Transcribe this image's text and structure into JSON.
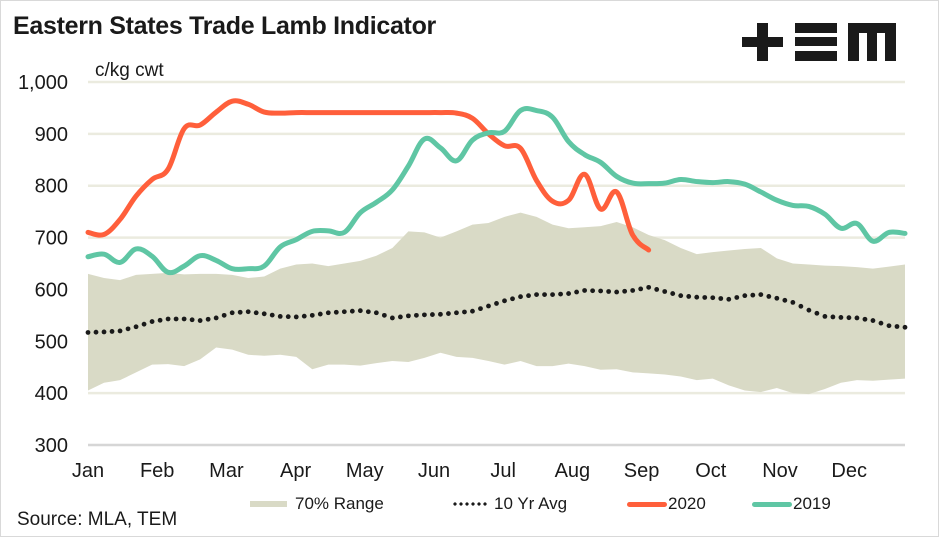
{
  "chart_data": {
    "type": "line",
    "title": "Eastern States Trade Lamb Indicator",
    "ylabel": "c/kg cwt",
    "xlabel": "",
    "ylim": [
      300,
      1000
    ],
    "yticks": [
      300,
      400,
      500,
      600,
      700,
      800,
      900,
      1000
    ],
    "ytick_labels": [
      "300",
      "400",
      "500",
      "600",
      "700",
      "800",
      "900",
      "1,000"
    ],
    "x_unit": "week of year",
    "xlim": [
      0,
      51
    ],
    "month_labels": [
      "Jan",
      "Feb",
      "Mar",
      "Apr",
      "May",
      "Jun",
      "Jul",
      "Aug",
      "Sep",
      "Oct",
      "Nov",
      "Dec"
    ],
    "grid": "horizontal",
    "legend_position": "bottom",
    "series": [
      {
        "name": "70% Range",
        "kind": "band",
        "color": "#d9dac6",
        "lower": [
          405,
          420,
          425,
          440,
          455,
          456,
          452,
          465,
          488,
          484,
          474,
          472,
          474,
          470,
          446,
          455,
          455,
          453,
          458,
          462,
          460,
          468,
          478,
          470,
          468,
          462,
          455,
          462,
          452,
          452,
          457,
          452,
          445,
          446,
          440,
          438,
          436,
          432,
          425,
          428,
          415,
          405,
          402,
          410,
          400,
          398,
          408,
          420,
          425,
          424,
          426,
          428
        ],
        "upper": [
          630,
          622,
          618,
          628,
          630,
          632,
          629,
          630,
          630,
          628,
          622,
          625,
          640,
          648,
          650,
          645,
          650,
          655,
          665,
          680,
          712,
          710,
          700,
          712,
          725,
          728,
          740,
          748,
          740,
          725,
          718,
          720,
          722,
          730,
          720,
          705,
          695,
          680,
          668,
          672,
          675,
          678,
          680,
          660,
          650,
          648,
          646,
          645,
          643,
          640,
          644,
          648
        ]
      },
      {
        "name": "10 Yr Avg",
        "kind": "dotted",
        "color": "#1a1a1a",
        "values": [
          517,
          518,
          520,
          528,
          538,
          543,
          543,
          540,
          545,
          555,
          557,
          553,
          548,
          547,
          550,
          555,
          557,
          559,
          555,
          545,
          549,
          551,
          552,
          555,
          558,
          568,
          578,
          586,
          590,
          590,
          592,
          598,
          597,
          595,
          598,
          604,
          596,
          588,
          585,
          584,
          581,
          588,
          590,
          583,
          575,
          560,
          548,
          546,
          545,
          540,
          530,
          527
        ]
      },
      {
        "name": "2020",
        "kind": "line",
        "color": "#ff5f3b",
        "values": [
          710,
          706,
          735,
          780,
          812,
          832,
          910,
          917,
          942,
          963,
          957,
          942,
          940,
          941,
          941,
          941,
          941,
          941,
          941,
          941,
          941,
          941,
          941,
          940,
          930,
          900,
          877,
          872,
          810,
          770,
          772,
          822,
          755,
          788,
          705,
          676
        ]
      },
      {
        "name": "2019",
        "kind": "line",
        "color": "#5fc6a4",
        "values": [
          663,
          668,
          652,
          678,
          664,
          633,
          645,
          665,
          656,
          640,
          640,
          645,
          682,
          696,
          712,
          713,
          710,
          748,
          768,
          792,
          838,
          890,
          873,
          848,
          888,
          902,
          905,
          945,
          945,
          932,
          885,
          860,
          845,
          818,
          805,
          804,
          805,
          812,
          808,
          806,
          808,
          803,
          788,
          772,
          762,
          760,
          745,
          718,
          727,
          693,
          710,
          708
        ]
      }
    ]
  },
  "header": {
    "title": "Eastern States Trade Lamb Indicator",
    "logo_text": "+EM"
  },
  "legend": {
    "items": [
      {
        "label": "70% Range",
        "symbol": "band",
        "color": "#d9dac6"
      },
      {
        "label": "10 Yr Avg",
        "symbol": "dots",
        "color": "#1a1a1a"
      },
      {
        "label": "2020",
        "symbol": "line",
        "color": "#ff5f3b"
      },
      {
        "label": "2019",
        "symbol": "line",
        "color": "#5fc6a4"
      }
    ]
  },
  "footer": {
    "source": "Source: MLA, TEM"
  }
}
